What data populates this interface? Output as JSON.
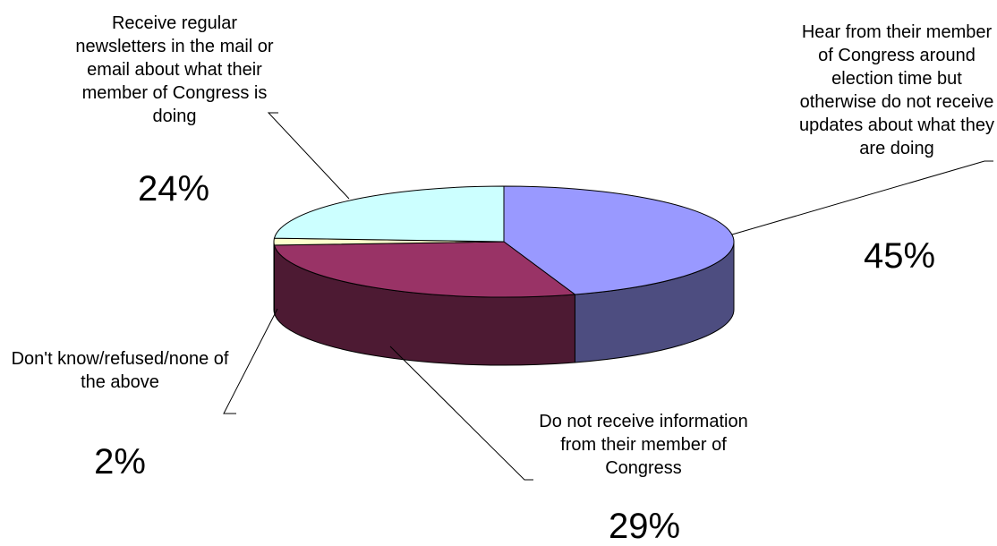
{
  "chart_data": {
    "type": "pie",
    "title": "",
    "three_d": true,
    "slices": [
      {
        "label": "Hear from their member of Congress around election time but otherwise do not receive updates about what they are doing",
        "value": 45,
        "value_label": "45%",
        "top_color": "#9999ff",
        "side_color": "#4d4d80"
      },
      {
        "label": "Do not receive information from their member of Congress",
        "value": 29,
        "value_label": "29%",
        "top_color": "#993366",
        "side_color": "#4d1a33"
      },
      {
        "label": "Don't know/refused/none of the above",
        "value": 2,
        "value_label": "2%",
        "top_color": "#ffffcc",
        "side_color": "#808066"
      },
      {
        "label": "Receive regular newsletters in the mail or email about what their member of Congress is doing",
        "value": 24,
        "value_label": "24%",
        "top_color": "#ccffff",
        "side_color": "#668080"
      }
    ]
  }
}
